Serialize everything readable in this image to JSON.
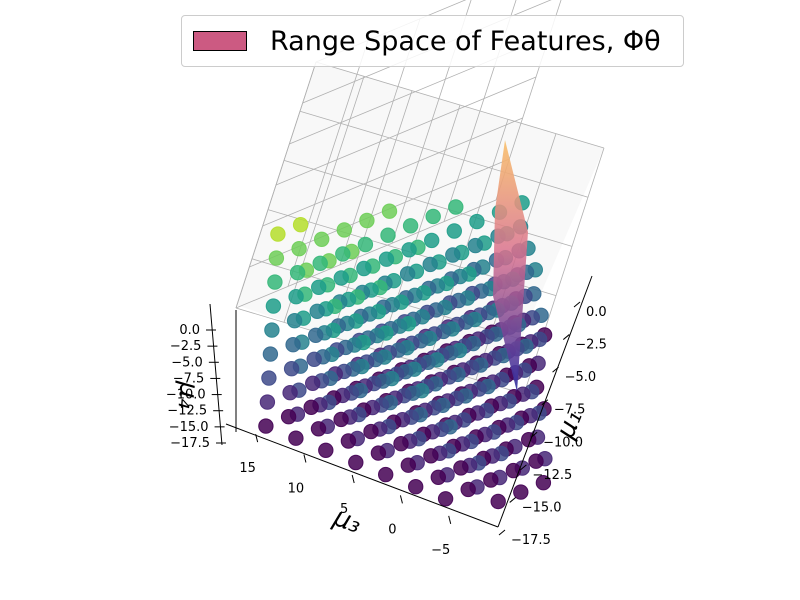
{
  "chart_data": {
    "type": "scatter3d",
    "title": "",
    "legend": {
      "label": "Range Space of Features, Φθ",
      "color": "#cc5a82",
      "placement": "top-right"
    },
    "axes": {
      "x": {
        "label": "μ₁",
        "ticks": [
          "0.0",
          "−2.5",
          "−5.0",
          "−7.5",
          "−10.0",
          "−12.5",
          "−15.0",
          "−17.5"
        ],
        "range": [
          -17.5,
          0
        ]
      },
      "y": {
        "label": "μ₃",
        "ticks": [
          "15",
          "10",
          "5",
          "0",
          "−5"
        ],
        "range": [
          -7,
          17
        ]
      },
      "z": {
        "label": "μ₄",
        "ticks": [
          "0.0",
          "−2.5",
          "−5.0",
          "−7.5",
          "−10.0",
          "−12.5",
          "−15.0",
          "−17.5"
        ],
        "range": [
          -17.5,
          0
        ]
      }
    },
    "grid": true,
    "colormap": "viridis",
    "point_grid": {
      "mu1_values": [
        -16,
        -14,
        -12,
        -10,
        -8,
        -6,
        -4,
        -2
      ],
      "mu3_values": [
        -6,
        -4,
        -2,
        0,
        2,
        4,
        6,
        8,
        10,
        12,
        14,
        16
      ]
    },
    "colors": {
      "plane_top": "#f7b267",
      "plane_mid": "#d96a8c",
      "plane_bottom": "#3a2a9c"
    }
  }
}
